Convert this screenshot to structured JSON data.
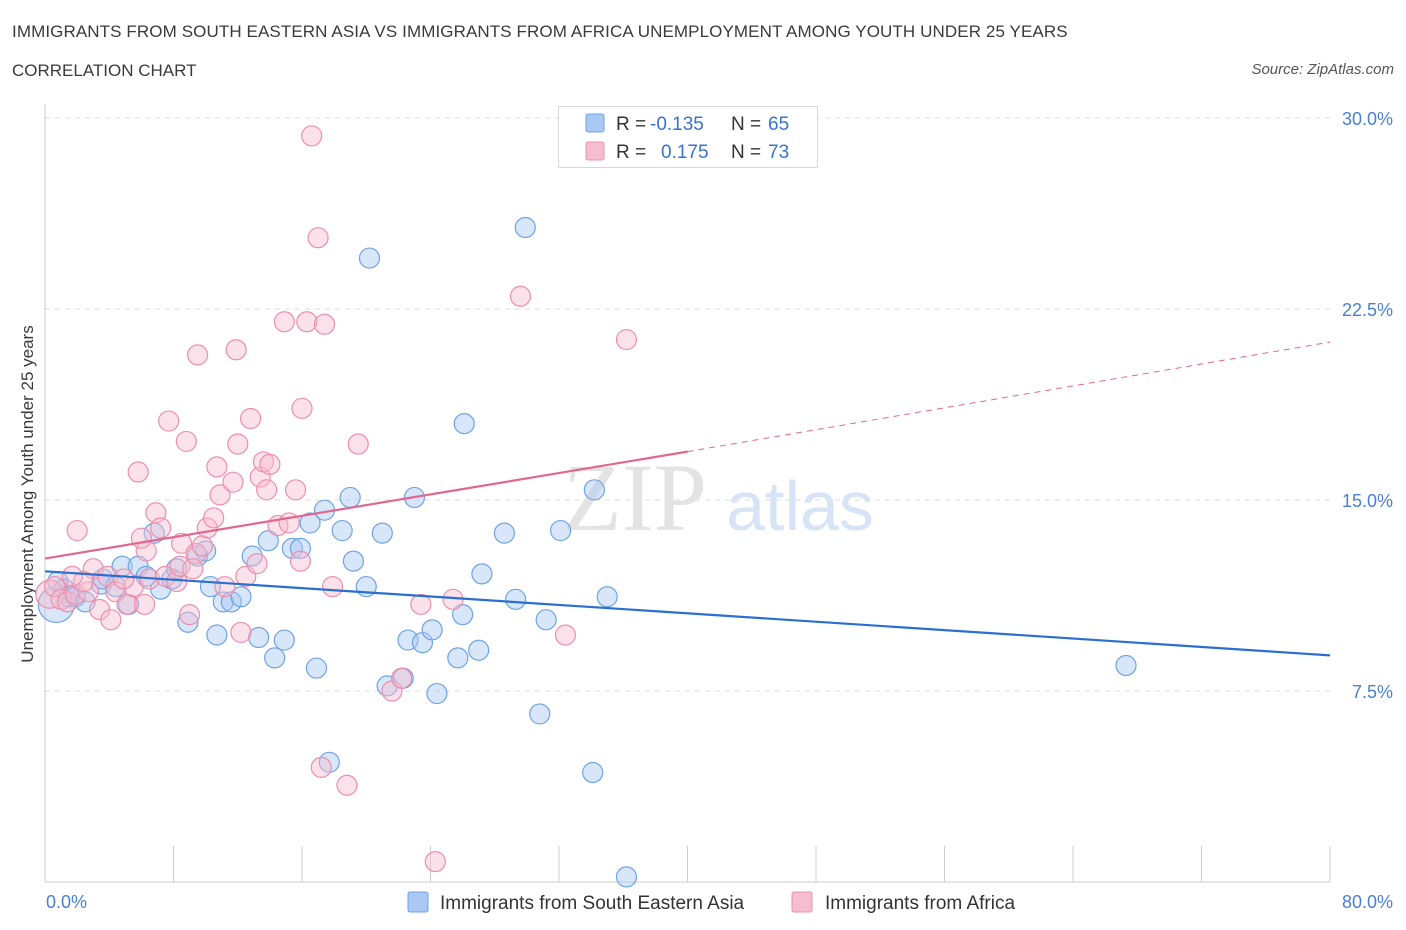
{
  "header": {
    "title": "IMMIGRANTS FROM SOUTH EASTERN ASIA VS IMMIGRANTS FROM AFRICA UNEMPLOYMENT AMONG YOUTH UNDER 25 YEARS",
    "subtitle": "CORRELATION CHART",
    "source": "Source: ZipAtlas.com"
  },
  "watermark": {
    "zip": "ZIP",
    "atlas": "atlas"
  },
  "colors": {
    "blue_fill": "#a9c8f2",
    "blue_stroke": "#6fa3e4",
    "blue_line": "#2a6fd0",
    "pink_fill": "#f6bccf",
    "pink_stroke": "#ec8fae",
    "pink_line": "#e06890",
    "axis_text": "#4a7fd4",
    "grid": "#dddddd"
  },
  "chart_data": {
    "type": "scatter",
    "ylabel": "Unemployment Among Youth under 25 years",
    "xlim": [
      0,
      80
    ],
    "ylim": [
      0,
      30
    ],
    "x_tick_labels": [
      {
        "value": 0,
        "label": "0.0%"
      },
      {
        "value": 80,
        "label": "80.0%"
      }
    ],
    "y_tick_labels": [
      {
        "value": 7.5,
        "label": "7.5%"
      },
      {
        "value": 15,
        "label": "15.0%"
      },
      {
        "value": 22.5,
        "label": "22.5%"
      },
      {
        "value": 30,
        "label": "30.0%"
      }
    ],
    "grid": true,
    "legend_position": "top-center",
    "series": [
      {
        "name": "Immigrants from South Eastern Asia",
        "color_key": "blue",
        "stats": {
          "r_label": "R =",
          "r": "-0.135",
          "n_label": "N =",
          "n": "65"
        },
        "trend": {
          "x_start": 0,
          "y_start": 12.2,
          "x_end": 80,
          "y_end": 8.9
        },
        "points": [
          [
            0.7,
            10.9,
            18
          ],
          [
            0.8,
            11.8,
            10
          ],
          [
            1.2,
            11.5,
            10
          ],
          [
            1.5,
            11.2,
            10
          ],
          [
            1.9,
            11.2,
            10
          ],
          [
            2.5,
            11.0,
            10
          ],
          [
            3.5,
            11.7,
            10
          ],
          [
            3.6,
            11.9,
            10
          ],
          [
            4.4,
            11.6,
            10
          ],
          [
            4.8,
            12.4,
            10
          ],
          [
            5.2,
            10.9,
            10
          ],
          [
            5.8,
            12.4,
            10
          ],
          [
            6.3,
            12.0,
            10
          ],
          [
            6.8,
            13.7,
            10
          ],
          [
            7.2,
            11.5,
            10
          ],
          [
            7.9,
            11.9,
            10
          ],
          [
            8.2,
            12.3,
            10
          ],
          [
            8.9,
            10.2,
            10
          ],
          [
            9.5,
            12.8,
            10
          ],
          [
            10.0,
            13.0,
            10
          ],
          [
            10.3,
            11.6,
            10
          ],
          [
            10.7,
            9.7,
            10
          ],
          [
            11.1,
            11.0,
            10
          ],
          [
            11.6,
            11.0,
            10
          ],
          [
            12.2,
            11.2,
            10
          ],
          [
            12.9,
            12.8,
            10
          ],
          [
            13.3,
            9.6,
            10
          ],
          [
            13.9,
            13.4,
            10
          ],
          [
            14.3,
            8.8,
            10
          ],
          [
            14.9,
            9.5,
            10
          ],
          [
            15.4,
            13.1,
            10
          ],
          [
            15.9,
            13.1,
            10
          ],
          [
            16.5,
            14.1,
            10
          ],
          [
            16.9,
            8.4,
            10
          ],
          [
            17.4,
            14.6,
            10
          ],
          [
            17.7,
            4.7,
            10
          ],
          [
            18.5,
            13.8,
            10
          ],
          [
            19.0,
            15.1,
            10
          ],
          [
            19.2,
            12.6,
            10
          ],
          [
            20.0,
            11.6,
            10
          ],
          [
            20.2,
            24.5,
            10
          ],
          [
            21.0,
            13.7,
            10
          ],
          [
            21.3,
            7.7,
            10
          ],
          [
            22.3,
            8.0,
            10
          ],
          [
            22.6,
            9.5,
            10
          ],
          [
            23.0,
            15.1,
            10
          ],
          [
            23.5,
            9.4,
            10
          ],
          [
            24.1,
            9.9,
            10
          ],
          [
            24.4,
            7.4,
            10
          ],
          [
            25.7,
            8.8,
            10
          ],
          [
            26.1,
            18.0,
            10
          ],
          [
            27.0,
            9.1,
            10
          ],
          [
            27.2,
            12.1,
            10
          ],
          [
            29.3,
            11.1,
            10
          ],
          [
            29.9,
            25.7,
            10
          ],
          [
            30.8,
            6.6,
            10
          ],
          [
            31.2,
            10.3,
            10
          ],
          [
            32.1,
            13.8,
            10
          ],
          [
            34.1,
            4.3,
            10
          ],
          [
            34.2,
            15.4,
            10
          ],
          [
            35.0,
            11.2,
            10
          ],
          [
            36.2,
            0.2,
            10
          ],
          [
            67.3,
            8.5,
            10
          ],
          [
            28.6,
            13.7,
            10
          ],
          [
            26.0,
            10.5,
            10
          ]
        ]
      },
      {
        "name": "Immigrants from Africa",
        "color_key": "pink",
        "stats": {
          "r_label": "R =",
          "r": "0.175",
          "n_label": "N =",
          "n": "73"
        },
        "trend": {
          "x_start": 0,
          "y_start": 12.7,
          "x_end": 40,
          "y_end": 16.9,
          "x_dashed_end": 80,
          "y_dashed_end": 21.2
        },
        "points": [
          [
            0.3,
            11.3,
            14
          ],
          [
            0.6,
            11.6,
            10
          ],
          [
            1.0,
            11.1,
            10
          ],
          [
            1.4,
            11.0,
            10
          ],
          [
            1.9,
            11.3,
            10
          ],
          [
            2.0,
            13.8,
            10
          ],
          [
            2.7,
            11.4,
            10
          ],
          [
            3.0,
            12.3,
            10
          ],
          [
            3.4,
            10.7,
            10
          ],
          [
            3.9,
            12.0,
            10
          ],
          [
            4.1,
            10.3,
            10
          ],
          [
            4.4,
            11.4,
            10
          ],
          [
            5.1,
            10.9,
            10
          ],
          [
            5.5,
            11.6,
            10
          ],
          [
            5.8,
            16.1,
            10
          ],
          [
            6.2,
            10.9,
            10
          ],
          [
            6.3,
            13.0,
            10
          ],
          [
            6.5,
            11.9,
            10
          ],
          [
            6.9,
            14.5,
            10
          ],
          [
            7.2,
            13.9,
            10
          ],
          [
            7.5,
            12.0,
            10
          ],
          [
            7.7,
            18.1,
            10
          ],
          [
            8.2,
            11.8,
            10
          ],
          [
            8.4,
            12.4,
            10
          ],
          [
            8.5,
            13.3,
            10
          ],
          [
            8.8,
            17.3,
            10
          ],
          [
            9.0,
            10.5,
            10
          ],
          [
            9.4,
            12.9,
            10
          ],
          [
            9.5,
            20.7,
            10
          ],
          [
            9.8,
            13.2,
            10
          ],
          [
            10.1,
            13.9,
            10
          ],
          [
            10.5,
            14.3,
            10
          ],
          [
            10.7,
            16.3,
            10
          ],
          [
            10.9,
            15.2,
            10
          ],
          [
            11.2,
            11.6,
            10
          ],
          [
            11.7,
            15.7,
            10
          ],
          [
            11.9,
            20.9,
            10
          ],
          [
            12.0,
            17.2,
            10
          ],
          [
            12.2,
            9.8,
            10
          ],
          [
            12.5,
            12.0,
            10
          ],
          [
            12.8,
            18.2,
            10
          ],
          [
            13.2,
            12.5,
            10
          ],
          [
            13.4,
            15.9,
            10
          ],
          [
            13.6,
            16.5,
            10
          ],
          [
            13.8,
            15.4,
            10
          ],
          [
            14.0,
            16.4,
            10
          ],
          [
            14.5,
            14.0,
            10
          ],
          [
            14.9,
            22.0,
            10
          ],
          [
            15.2,
            14.1,
            10
          ],
          [
            15.6,
            15.4,
            10
          ],
          [
            16.0,
            18.6,
            10
          ],
          [
            16.3,
            22.0,
            10
          ],
          [
            16.6,
            29.3,
            10
          ],
          [
            17.0,
            25.3,
            10
          ],
          [
            17.2,
            4.5,
            10
          ],
          [
            17.4,
            21.9,
            10
          ],
          [
            17.9,
            11.6,
            10
          ],
          [
            18.8,
            3.8,
            10
          ],
          [
            19.5,
            17.2,
            10
          ],
          [
            21.6,
            7.5,
            10
          ],
          [
            22.2,
            8.0,
            10
          ],
          [
            23.4,
            10.9,
            10
          ],
          [
            24.3,
            0.8,
            10
          ],
          [
            25.4,
            11.1,
            10
          ],
          [
            29.6,
            23.0,
            10
          ],
          [
            32.4,
            9.7,
            10
          ],
          [
            36.2,
            21.3,
            10
          ],
          [
            6.0,
            13.5,
            10
          ],
          [
            2.4,
            11.8,
            10
          ],
          [
            4.9,
            11.9,
            10
          ],
          [
            9.2,
            12.3,
            10
          ],
          [
            15.9,
            12.6,
            10
          ],
          [
            1.7,
            12.0,
            10
          ]
        ]
      }
    ]
  }
}
